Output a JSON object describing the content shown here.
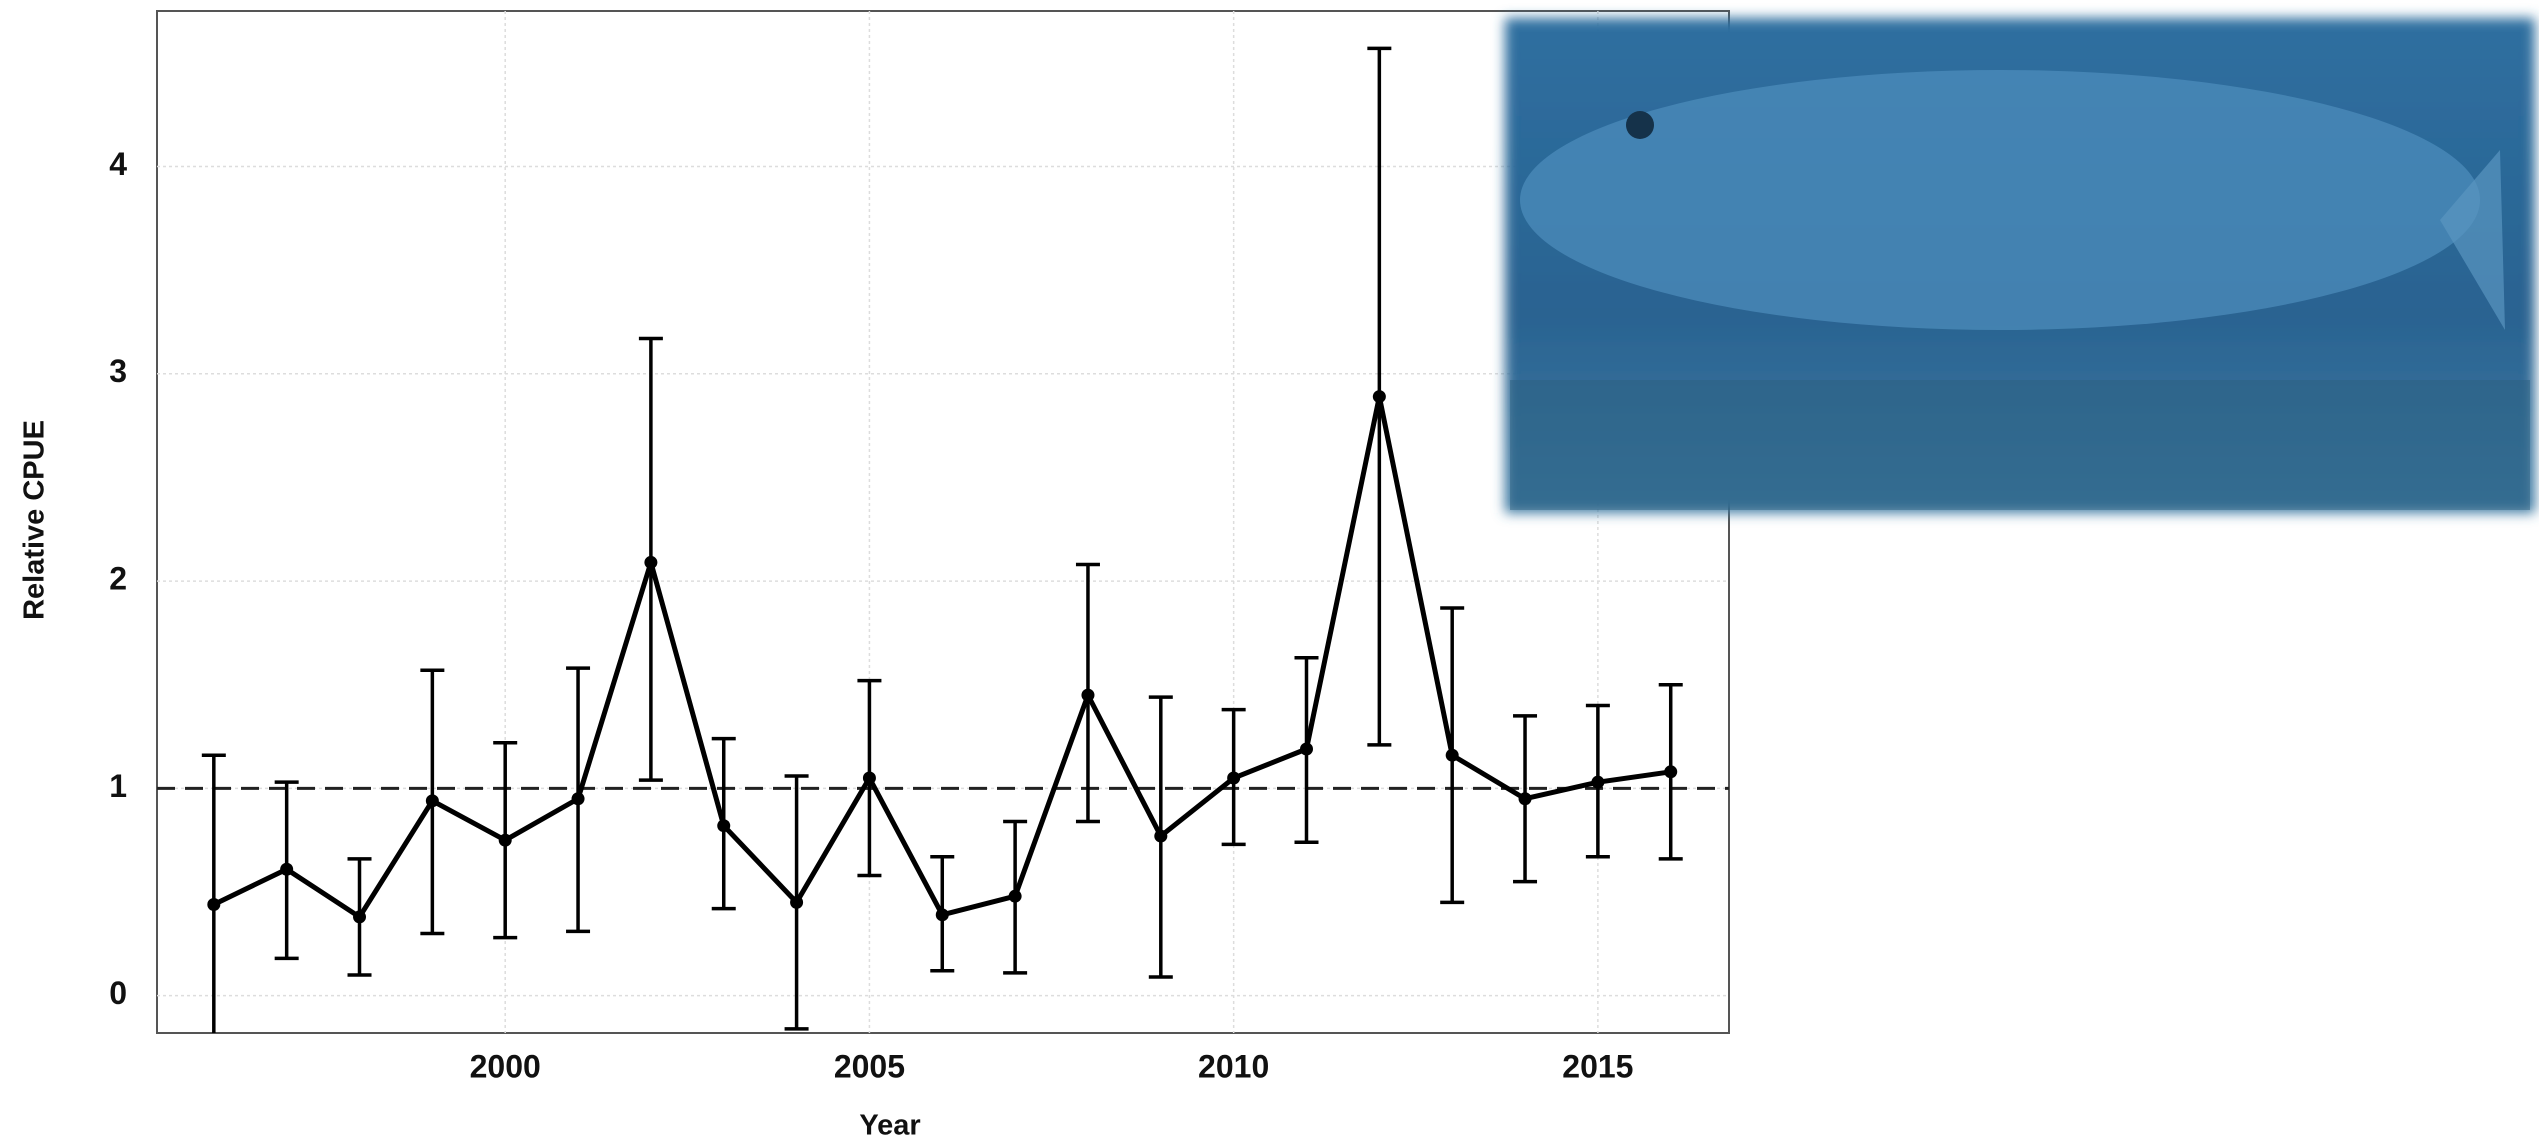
{
  "chart_data": {
    "type": "line",
    "x_label": "Year",
    "y_label": "Relative CPUE",
    "x": [
      1996,
      1997,
      1998,
      1999,
      2000,
      2001,
      2002,
      2003,
      2004,
      2005,
      2006,
      2007,
      2008,
      2009,
      2010,
      2011,
      2012,
      2013,
      2014,
      2015,
      2016
    ],
    "series": [
      {
        "color": "#000000",
        "values": [
          0.44,
          0.61,
          0.38,
          0.94,
          0.75,
          0.95,
          2.09,
          0.82,
          0.45,
          1.05,
          0.39,
          0.48,
          1.45,
          0.77,
          1.05,
          1.19,
          2.89,
          1.16,
          0.95,
          1.03,
          1.08
        ],
        "lower": [
          -0.25,
          0.18,
          0.1,
          0.3,
          0.28,
          0.31,
          1.04,
          0.42,
          -0.16,
          0.58,
          0.12,
          0.11,
          0.84,
          0.09,
          0.73,
          0.74,
          1.21,
          0.45,
          0.55,
          0.67,
          0.66
        ],
        "upper": [
          1.16,
          1.03,
          0.66,
          1.57,
          1.22,
          1.58,
          3.17,
          1.24,
          1.06,
          1.52,
          0.67,
          0.84,
          2.08,
          1.44,
          1.38,
          1.63,
          4.57,
          1.87,
          1.35,
          1.4,
          1.5
        ]
      }
    ],
    "reference_line": 1,
    "xlim": [
      1995.22,
      2016.8
    ],
    "ylim": [
      -0.18,
      4.75
    ],
    "xticks": [
      2000,
      2005,
      2010,
      2015
    ],
    "yticks": [
      0,
      1,
      2,
      3,
      4
    ],
    "grid": true
  }
}
